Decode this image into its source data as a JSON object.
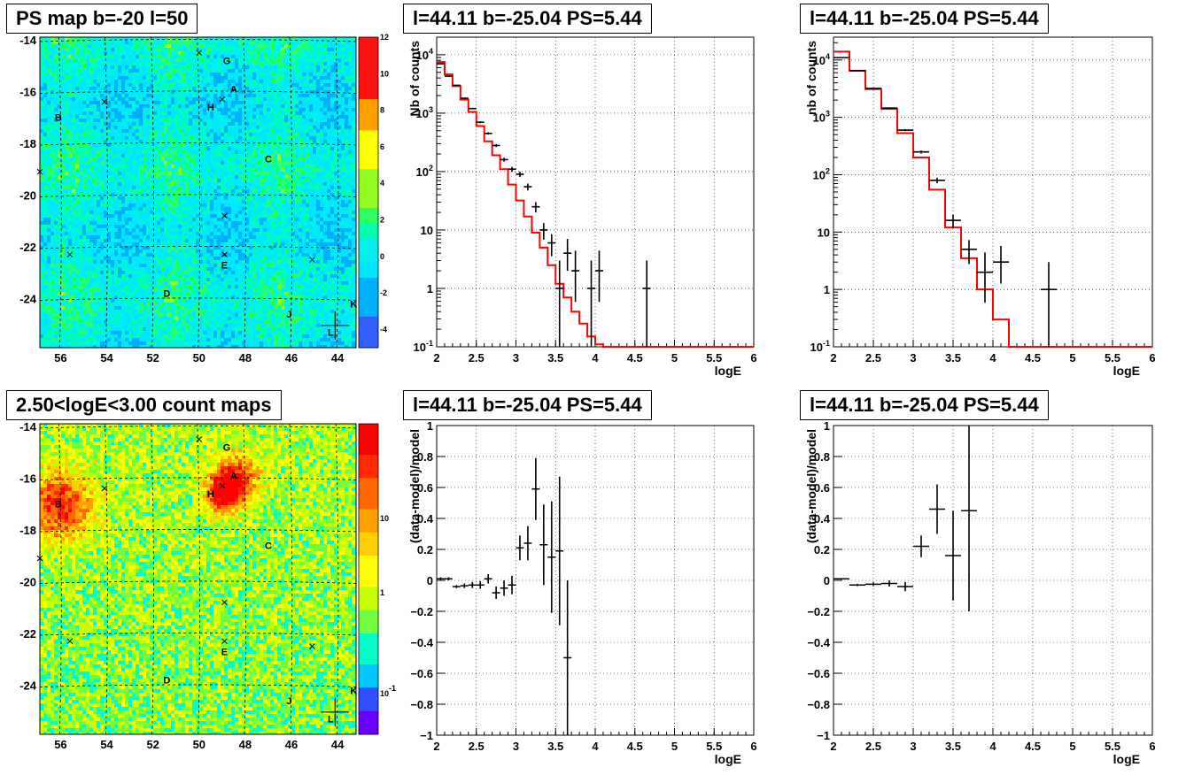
{
  "titles": {
    "map1": "PS map b=-20 l=50",
    "map2": "2.50<logE<3.00 count maps",
    "spec1": "l=44.11 b=-25.04 PS=5.44",
    "spec2": "l=44.11 b=-25.04 PS=5.44",
    "res1": "l=44.11 b=-25.04 PS=5.44",
    "res2": "l=44.11 b=-25.04 PS=5.44"
  },
  "colors": {
    "model": "#ff0000",
    "data": "#000000",
    "grid": "#000000"
  },
  "chart_data": [
    {
      "id": "map1",
      "type": "heatmap",
      "title": "PS map b=-20 l=50",
      "xlim": [
        56.9,
        43.2
      ],
      "ylim": [
        -25.9,
        -13.9
      ],
      "x_ticks": [
        "56",
        "54",
        "52",
        "50",
        "48",
        "46",
        "44"
      ],
      "y_ticks": [
        "-14",
        "-16",
        "-18",
        "-20",
        "-22",
        "-24"
      ],
      "colorbar_ticks": [
        "-4",
        "-2",
        "0",
        "2",
        "4",
        "6",
        "8",
        "10",
        "12"
      ],
      "colorbar_range": [
        -5,
        12
      ],
      "sources": [
        {
          "label": "G",
          "l": 48.8,
          "b": -14.8
        },
        {
          "label": "A",
          "l": 48.5,
          "b": -15.9
        },
        {
          "label": "H",
          "l": 49.5,
          "b": -16.6
        },
        {
          "label": "B",
          "l": 56.1,
          "b": -17.0
        },
        {
          "label": "C",
          "l": 47.0,
          "b": -18.6
        },
        {
          "label": "E",
          "l": 48.9,
          "b": -22.7
        },
        {
          "label": "D",
          "l": 51.4,
          "b": -23.8
        },
        {
          "label": "J",
          "l": 46.1,
          "b": -24.6
        },
        {
          "label": "K",
          "l": 43.3,
          "b": -24.2
        },
        {
          "label": "L",
          "l": 44.3,
          "b": -25.3
        }
      ]
    },
    {
      "id": "map2",
      "type": "heatmap",
      "title": "2.50<logE<3.00 count maps",
      "xlim": [
        56.9,
        43.2
      ],
      "ylim": [
        -25.9,
        -13.9
      ],
      "x_ticks": [
        "56",
        "54",
        "52",
        "50",
        "48",
        "46",
        "44"
      ],
      "y_ticks": [
        "-14",
        "-16",
        "-18",
        "-20",
        "-22",
        "-24"
      ],
      "colorbar_ticks": [
        "10",
        "1",
        "10^-1"
      ],
      "colorbar_scale": "log"
    },
    {
      "id": "spec1",
      "type": "line",
      "title": "l=44.11 b=-25.04 PS=5.44",
      "xlabel": "logE",
      "ylabel": "Nb of counts",
      "xlim": [
        2,
        6
      ],
      "ylim": [
        0.1,
        20000
      ],
      "yscale": "log",
      "x_ticks": [
        "2",
        "2.5",
        "3",
        "3.5",
        "4",
        "4.5",
        "5",
        "5.5",
        "6"
      ],
      "y_ticks": [
        "10^-1",
        "1",
        "10",
        "10^2",
        "10^3",
        "10^4"
      ],
      "grid": true,
      "model": {
        "edges": [
          2.0,
          2.1,
          2.2,
          2.3,
          2.4,
          2.5,
          2.6,
          2.7,
          2.8,
          2.9,
          3.0,
          3.1,
          3.2,
          3.3,
          3.4,
          3.5,
          3.6,
          3.7,
          3.8,
          3.9,
          4.0,
          4.1,
          4.2,
          6.0
        ],
        "values": [
          7500,
          4600,
          2900,
          1700,
          1050,
          600,
          330,
          190,
          110,
          60,
          32,
          17,
          9,
          5,
          2.5,
          1.2,
          0.7,
          0.4,
          0.25,
          0.15,
          0.11,
          0.1,
          0.1
        ]
      },
      "points": [
        {
          "x": 2.05,
          "y": 7000,
          "xerr": 0.05
        },
        {
          "x": 2.15,
          "y": 4300,
          "xerr": 0.05
        },
        {
          "x": 2.25,
          "y": 3000,
          "xerr": 0.05
        },
        {
          "x": 2.35,
          "y": 1800,
          "xerr": 0.05
        },
        {
          "x": 2.45,
          "y": 1200,
          "xerr": 0.05
        },
        {
          "x": 2.55,
          "y": 700,
          "xerr": 0.05
        },
        {
          "x": 2.65,
          "y": 450,
          "xerr": 0.05
        },
        {
          "x": 2.75,
          "y": 280,
          "xerr": 0.05
        },
        {
          "x": 2.85,
          "y": 160,
          "xerr": 0.05
        },
        {
          "x": 2.95,
          "y": 110,
          "xerr": 0.05
        },
        {
          "x": 3.05,
          "y": 90,
          "xerr": 0.05
        },
        {
          "x": 3.15,
          "y": 55,
          "xerr": 0.05
        },
        {
          "x": 3.25,
          "y": 25,
          "xerr": 0.05
        },
        {
          "x": 3.35,
          "y": 10,
          "xerr": 0.05
        },
        {
          "x": 3.45,
          "y": 6,
          "xerr": 0.05
        },
        {
          "x": 3.55,
          "y": 1,
          "xerr": 0.05
        },
        {
          "x": 3.65,
          "y": 4,
          "xerr": 0.05
        },
        {
          "x": 3.75,
          "y": 2,
          "xerr": 0.05
        },
        {
          "x": 3.95,
          "y": 1,
          "xerr": 0.05
        },
        {
          "x": 4.05,
          "y": 2,
          "xerr": 0.05
        },
        {
          "x": 4.65,
          "y": 1,
          "xerr": 0.05
        }
      ]
    },
    {
      "id": "spec2",
      "type": "line",
      "title": "l=44.11 b=-25.04 PS=5.44",
      "xlabel": "logE",
      "ylabel": "nb of counts",
      "xlim": [
        2,
        6
      ],
      "ylim": [
        0.1,
        25000
      ],
      "yscale": "log",
      "x_ticks": [
        "2",
        "2.5",
        "3",
        "3.5",
        "4",
        "4.5",
        "5",
        "5.5",
        "6"
      ],
      "y_ticks": [
        "10^-1",
        "1",
        "10",
        "10^2",
        "10^3",
        "10^4"
      ],
      "grid": true,
      "model": {
        "edges": [
          2.0,
          2.2,
          2.4,
          2.6,
          2.8,
          3.0,
          3.2,
          3.4,
          3.6,
          3.8,
          4.0,
          4.2,
          6.0
        ],
        "values": [
          14000,
          6500,
          3100,
          1400,
          530,
          200,
          55,
          12,
          3.5,
          1,
          0.3,
          0.1
        ]
      },
      "points": [
        {
          "x": 2.1,
          "y": 11000,
          "xerr": 0.1
        },
        {
          "x": 2.3,
          "y": 6500,
          "xerr": 0.1
        },
        {
          "x": 2.5,
          "y": 3200,
          "xerr": 0.1
        },
        {
          "x": 2.7,
          "y": 1450,
          "xerr": 0.1
        },
        {
          "x": 2.9,
          "y": 600,
          "xerr": 0.1
        },
        {
          "x": 3.1,
          "y": 250,
          "xerr": 0.1
        },
        {
          "x": 3.3,
          "y": 80,
          "xerr": 0.1
        },
        {
          "x": 3.5,
          "y": 16,
          "xerr": 0.1
        },
        {
          "x": 3.7,
          "y": 5,
          "xerr": 0.1
        },
        {
          "x": 3.9,
          "y": 2,
          "xerr": 0.1
        },
        {
          "x": 4.1,
          "y": 3,
          "xerr": 0.1
        },
        {
          "x": 4.7,
          "y": 1,
          "xerr": 0.1
        }
      ]
    },
    {
      "id": "res1",
      "type": "scatter",
      "title": "l=44.11 b=-25.04 PS=5.44",
      "xlabel": "logE",
      "ylabel": "(data-model)/model",
      "xlim": [
        2,
        6
      ],
      "ylim": [
        -1,
        1
      ],
      "x_ticks": [
        "2",
        "2.5",
        "3",
        "3.5",
        "4",
        "4.5",
        "5",
        "5.5",
        "6"
      ],
      "y_ticks": [
        "−1",
        "−0.8",
        "−0.6",
        "−0.4",
        "−0.2",
        "0",
        "0.2",
        "0.4",
        "0.6",
        "0.8",
        "1"
      ],
      "grid": true,
      "points": [
        {
          "x": 2.05,
          "y": 0.01,
          "xerr": 0.05,
          "yerr": 0.01
        },
        {
          "x": 2.15,
          "y": 0.01,
          "xerr": 0.05,
          "yerr": 0.01
        },
        {
          "x": 2.25,
          "y": -0.04,
          "xerr": 0.05,
          "yerr": 0.01
        },
        {
          "x": 2.35,
          "y": -0.035,
          "xerr": 0.05,
          "yerr": 0.015
        },
        {
          "x": 2.45,
          "y": -0.03,
          "xerr": 0.05,
          "yerr": 0.02
        },
        {
          "x": 2.55,
          "y": -0.03,
          "xerr": 0.05,
          "yerr": 0.025
        },
        {
          "x": 2.65,
          "y": 0.01,
          "xerr": 0.05,
          "yerr": 0.03
        },
        {
          "x": 2.75,
          "y": -0.08,
          "xerr": 0.05,
          "yerr": 0.04
        },
        {
          "x": 2.85,
          "y": -0.05,
          "xerr": 0.05,
          "yerr": 0.05
        },
        {
          "x": 2.95,
          "y": -0.03,
          "xerr": 0.05,
          "yerr": 0.06
        },
        {
          "x": 3.05,
          "y": 0.21,
          "xerr": 0.05,
          "yerr": 0.08
        },
        {
          "x": 3.15,
          "y": 0.24,
          "xerr": 0.05,
          "yerr": 0.11
        },
        {
          "x": 3.25,
          "y": 0.59,
          "xerr": 0.05,
          "yerr": 0.2
        },
        {
          "x": 3.35,
          "y": 0.23,
          "xerr": 0.05,
          "yerr": 0.26
        },
        {
          "x": 3.45,
          "y": 0.15,
          "xerr": 0.05,
          "yerr": 0.36
        },
        {
          "x": 3.55,
          "y": 0.19,
          "xerr": 0.05,
          "yerr": 0.48
        },
        {
          "x": 3.65,
          "y": -0.5,
          "xerr": 0.05,
          "yerr": 0.5
        }
      ]
    },
    {
      "id": "res2",
      "type": "scatter",
      "title": "l=44.11 b=-25.04 PS=5.44",
      "xlabel": "logE",
      "ylabel": "(data-model)/model",
      "xlim": [
        2,
        6
      ],
      "ylim": [
        -1,
        1
      ],
      "x_ticks": [
        "2",
        "2.5",
        "3",
        "3.5",
        "4",
        "4.5",
        "5",
        "5.5",
        "6"
      ],
      "y_ticks": [
        "−1",
        "−0.8",
        "−0.6",
        "−0.4",
        "−0.2",
        "0",
        "0.2",
        "0.4",
        "0.6",
        "0.8",
        "1"
      ],
      "grid": true,
      "points": [
        {
          "x": 2.1,
          "y": 0.01,
          "xerr": 0.1,
          "yerr": 0.005
        },
        {
          "x": 2.3,
          "y": -0.03,
          "xerr": 0.1,
          "yerr": 0.008
        },
        {
          "x": 2.5,
          "y": -0.025,
          "xerr": 0.1,
          "yerr": 0.012
        },
        {
          "x": 2.7,
          "y": -0.02,
          "xerr": 0.1,
          "yerr": 0.02
        },
        {
          "x": 2.9,
          "y": -0.04,
          "xerr": 0.1,
          "yerr": 0.03
        },
        {
          "x": 3.1,
          "y": 0.22,
          "xerr": 0.1,
          "yerr": 0.07
        },
        {
          "x": 3.3,
          "y": 0.46,
          "xerr": 0.1,
          "yerr": 0.16
        },
        {
          "x": 3.5,
          "y": 0.16,
          "xerr": 0.1,
          "yerr": 0.29
        },
        {
          "x": 3.7,
          "y": 0.45,
          "xerr": 0.1,
          "yerr": 0.65
        }
      ]
    }
  ]
}
